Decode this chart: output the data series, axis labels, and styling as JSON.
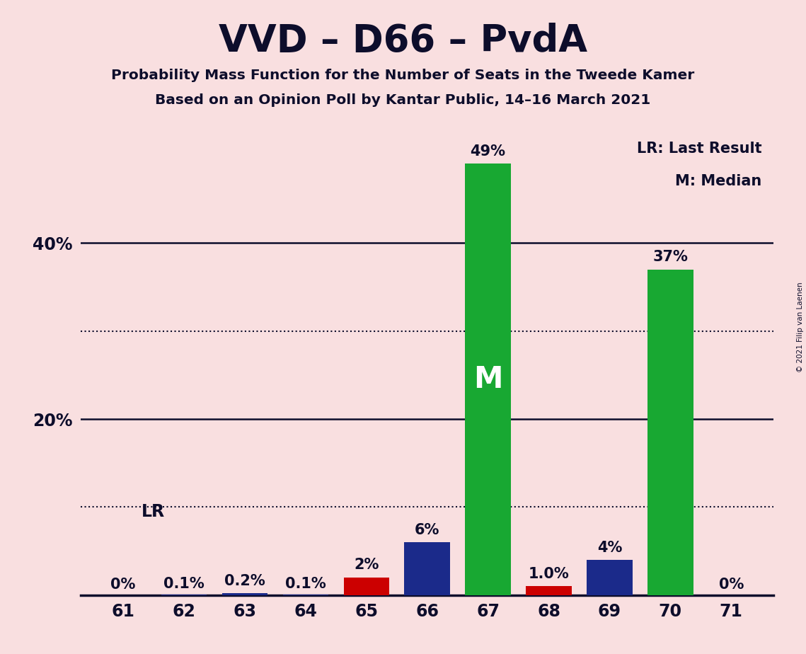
{
  "title": "VVD – D66 – PvdA",
  "subtitle1": "Probability Mass Function for the Number of Seats in the Tweede Kamer",
  "subtitle2": "Based on an Opinion Poll by Kantar Public, 14–16 March 2021",
  "copyright": "© 2021 Filip van Laenen",
  "seats": [
    61,
    62,
    63,
    64,
    65,
    66,
    67,
    68,
    69,
    70,
    71
  ],
  "pmf_values": [
    0.0,
    0.1,
    0.2,
    0.1,
    2.0,
    6.0,
    49.0,
    1.0,
    4.0,
    37.0,
    0.0
  ],
  "pmf_labels": [
    "0%",
    "0.1%",
    "0.2%",
    "0.1%",
    "2%",
    "6%",
    "49%",
    "1.0%",
    "4%",
    "37%",
    "0%"
  ],
  "bar_colors": [
    "#1b2a8a",
    "#1b2a8a",
    "#1b2a8a",
    "#1b2a8a",
    "#cc0000",
    "#1b2a8a",
    "#18a832",
    "#cc0000",
    "#1b2a8a",
    "#18a832",
    "#1b2a8a"
  ],
  "median_seat": 67,
  "last_result_seat": 61,
  "background_color": "#f9dfe0",
  "text_color": "#0d0d2b",
  "grid_solid_color": "#0d0d2b",
  "grid_dot_color": "#0d0d2b",
  "ylim": [
    0,
    52
  ],
  "solid_gridlines": [
    20,
    40
  ],
  "dotted_gridlines": [
    10,
    30
  ],
  "ytick_positions": [
    20,
    40
  ],
  "ytick_labels": [
    "20%",
    "40%"
  ],
  "legend_text1": "LR: Last Result",
  "legend_text2": "M: Median",
  "lr_label": "LR",
  "median_label": "M",
  "bar_width": 0.75
}
